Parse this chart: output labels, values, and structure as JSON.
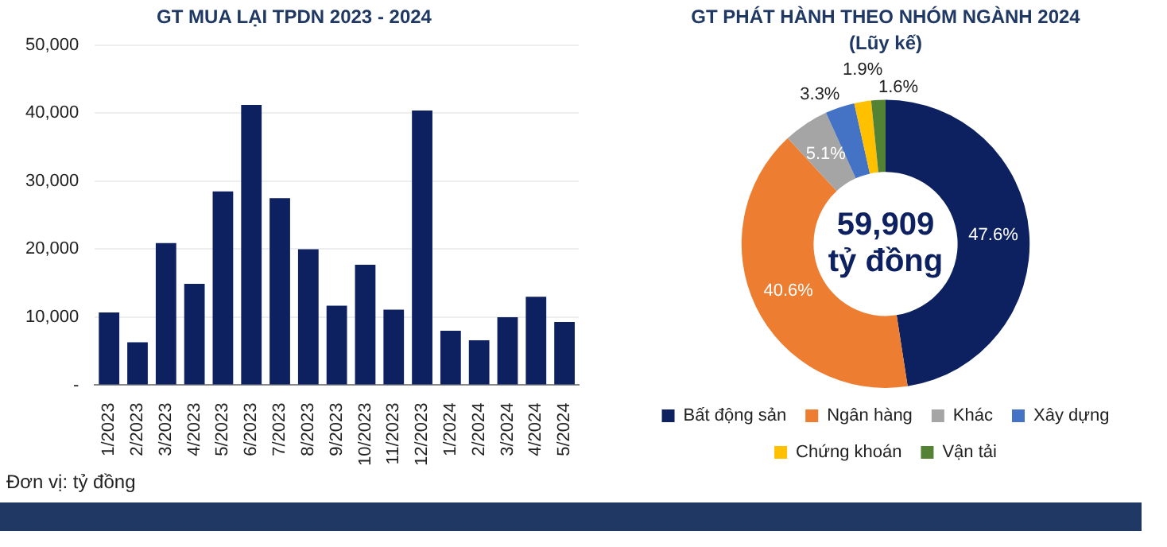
{
  "chart_data": [
    {
      "type": "bar",
      "title": "GT MUA LẠI TPDN 2023 - 2024",
      "categories": [
        "1/2023",
        "2/2023",
        "3/2023",
        "4/2023",
        "5/2023",
        "6/2023",
        "7/2023",
        "8/2023",
        "9/2023",
        "10/2023",
        "11/2023",
        "12/2023",
        "1/2024",
        "2/2024",
        "3/2024",
        "4/2024",
        "5/2024"
      ],
      "values": [
        10700,
        6300,
        20900,
        14900,
        28500,
        41200,
        27500,
        20000,
        11700,
        17700,
        11100,
        40400,
        8000,
        6600,
        10000,
        13000,
        9300
      ],
      "color": "#0d2161",
      "ylim": [
        0,
        50000
      ],
      "yticks": [
        {
          "value": 0,
          "label": "-"
        },
        {
          "value": 10000,
          "label": "10,000"
        },
        {
          "value": 20000,
          "label": "20,000"
        },
        {
          "value": 30000,
          "label": "30,000"
        },
        {
          "value": 40000,
          "label": "40,000"
        },
        {
          "value": 50000,
          "label": "50,000"
        }
      ],
      "grid": "y",
      "annotations": [
        "Đơn vị: tỷ đồng"
      ]
    },
    {
      "type": "donut",
      "title": "GT PHÁT HÀNH THEO NHÓM NGÀNH 2024",
      "subtitle": "(Lũy kế)",
      "categories": [
        "Bất động sản",
        "Ngân hàng",
        "Khác",
        "Xây dựng",
        "Chứng khoán",
        "Vận tải"
      ],
      "values": [
        47.6,
        40.6,
        5.1,
        3.3,
        1.9,
        1.6
      ],
      "colors": [
        "#0d2161",
        "#ed7d31",
        "#a5a5a5",
        "#4472c4",
        "#ffc000",
        "#548235"
      ],
      "data_labels": true,
      "value_labels": [
        "47.6%",
        "40.6%",
        "5.1%",
        "3.3%",
        "1.9%",
        "1.6%"
      ],
      "legend": "bottom",
      "annotations": [
        "59,909",
        "tỷ đồng"
      ]
    }
  ]
}
